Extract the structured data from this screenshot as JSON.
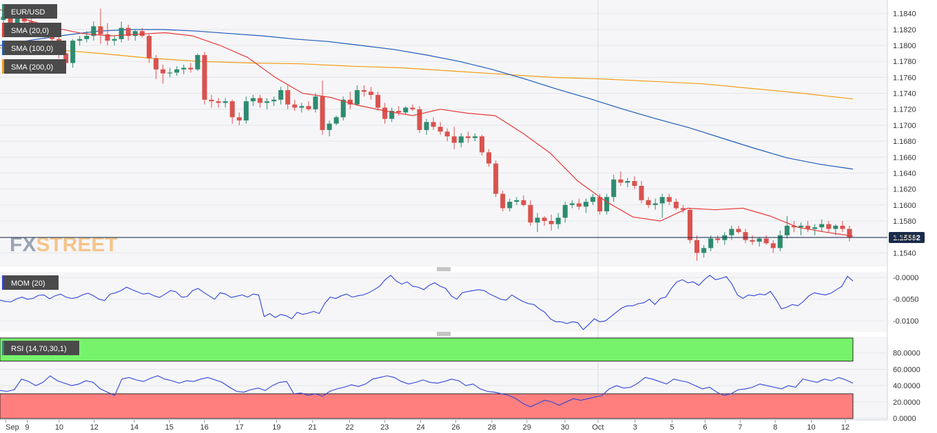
{
  "symbol": "EUR/USD",
  "current_price_label": "1.15592",
  "watermark": {
    "part1": "FX",
    "part2": "STREET"
  },
  "indicators": {
    "sma20": {
      "label": "SMA (20,0)",
      "color": "#e53935"
    },
    "sma100": {
      "label": "SMA (100,0)",
      "color": "#1e5bb8"
    },
    "sma200": {
      "label": "SMA (200,0)",
      "color": "#f39c12"
    },
    "mom": {
      "label": "MOM (20)",
      "color": "#2f43d6"
    },
    "rsi": {
      "label": "RSI (14,70,30,1)",
      "color": "#2f43d6"
    }
  },
  "colors": {
    "up_candle": "#2e8b6f",
    "down_candle": "#d9534f",
    "price_line": "#1a2b4a",
    "rsi_overbought_zone": "#77f36b",
    "rsi_oversold_zone": "#ff7f7f"
  },
  "chart_data": [
    {
      "type": "candlestick",
      "name": "price",
      "y_ticks": [
        "1.1840",
        "1.1820",
        "1.1800",
        "1.1780",
        "1.1760",
        "1.1740",
        "1.1720",
        "1.1700",
        "1.1680",
        "1.1660",
        "1.1640",
        "1.1620",
        "1.1600",
        "1.1580",
        "1.1560",
        "1.1540"
      ],
      "ylim": [
        1.1523,
        1.1857
      ],
      "grid": true,
      "x_labels": [
        "Sep",
        "9",
        "10",
        "12",
        "14",
        "15",
        "16",
        "17",
        "19",
        "21",
        "22",
        "23",
        "24",
        "26",
        "28",
        "29",
        "30",
        "Oct",
        "3",
        "5",
        "6",
        "7",
        "8",
        "10",
        "12"
      ],
      "x_label_positions": [
        0.15,
        2.3,
        5.5,
        9,
        13,
        16.5,
        20,
        23.5,
        27.2,
        30.8,
        34.5,
        38,
        41.6,
        45.1,
        48.7,
        52.2,
        56,
        59.3,
        63,
        66.7,
        70,
        73.5,
        77,
        80.6,
        84
      ],
      "current_price": 1.15592,
      "sma20": [
        1.1845,
        1.1832,
        1.1822,
        1.1815,
        1.1812,
        1.1814,
        1.1816,
        1.1812,
        1.18,
        1.1785,
        1.176,
        1.174,
        1.1735,
        1.1725,
        1.1718,
        1.1712,
        1.172,
        1.1715,
        1.1712,
        1.169,
        1.1665,
        1.163,
        1.1605,
        1.1585,
        1.158,
        1.1596,
        1.1594,
        1.1596,
        1.1586,
        1.1572,
        1.1566,
        1.1561
      ],
      "sma100": [
        1.18,
        1.1807,
        1.1813,
        1.1818,
        1.182,
        1.182,
        1.1818,
        1.1815,
        1.1812,
        1.1808,
        1.1805,
        1.18,
        1.1795,
        1.1788,
        1.178,
        1.177,
        1.1758,
        1.1745,
        1.1733,
        1.172,
        1.1708,
        1.1697,
        1.1684,
        1.1671,
        1.1659,
        1.1651,
        1.1645
      ],
      "sma200": [
        1.1797,
        1.1795,
        1.179,
        1.1784,
        1.178,
        1.1778,
        1.1777,
        1.1774,
        1.1772,
        1.1768,
        1.1764,
        1.176,
        1.1758,
        1.1755,
        1.1752,
        1.1746,
        1.174,
        1.1733
      ],
      "candles": [
        [
          1.1832,
          1.1852,
          1.1826,
          1.1836
        ],
        [
          1.1836,
          1.1842,
          1.182,
          1.1826
        ],
        [
          1.1826,
          1.1846,
          1.1822,
          1.184
        ],
        [
          1.184,
          1.1846,
          1.1824,
          1.183
        ],
        [
          1.183,
          1.1835,
          1.1818,
          1.1822
        ],
        [
          1.1822,
          1.1826,
          1.1812,
          1.1815
        ],
        [
          1.1815,
          1.1818,
          1.1808,
          1.1811
        ],
        [
          1.1811,
          1.1818,
          1.1806,
          1.1808
        ],
        [
          1.1808,
          1.1812,
          1.1784,
          1.179
        ],
        [
          1.179,
          1.1795,
          1.177,
          1.1778
        ],
        [
          1.1778,
          1.1808,
          1.1772,
          1.1806
        ],
        [
          1.1806,
          1.1812,
          1.18,
          1.1808
        ],
        [
          1.1808,
          1.1818,
          1.1804,
          1.1812
        ],
        [
          1.1812,
          1.183,
          1.1806,
          1.1824
        ],
        [
          1.1824,
          1.1846,
          1.1802,
          1.1814
        ],
        [
          1.1814,
          1.1828,
          1.18,
          1.1806
        ],
        [
          1.1806,
          1.1812,
          1.18,
          1.1808
        ],
        [
          1.1808,
          1.183,
          1.1804,
          1.1822
        ],
        [
          1.1822,
          1.1826,
          1.1806,
          1.1812
        ],
        [
          1.1812,
          1.182,
          1.1806,
          1.1818
        ],
        [
          1.1818,
          1.1822,
          1.181,
          1.1812
        ],
        [
          1.1812,
          1.1814,
          1.1778,
          1.1784
        ],
        [
          1.1784,
          1.1788,
          1.1758,
          1.177
        ],
        [
          1.177,
          1.1776,
          1.1752,
          1.1765
        ],
        [
          1.1765,
          1.1772,
          1.176,
          1.1766
        ],
        [
          1.1766,
          1.1774,
          1.1762,
          1.177
        ],
        [
          1.177,
          1.1776,
          1.1764,
          1.1772
        ],
        [
          1.1772,
          1.1778,
          1.1766,
          1.177
        ],
        [
          1.177,
          1.179,
          1.1768,
          1.1788
        ],
        [
          1.1788,
          1.1792,
          1.1726,
          1.1732
        ],
        [
          1.1732,
          1.1738,
          1.1722,
          1.173
        ],
        [
          1.173,
          1.1734,
          1.1722,
          1.1728
        ],
        [
          1.1728,
          1.1734,
          1.1722,
          1.173
        ],
        [
          1.173,
          1.1732,
          1.1702,
          1.171
        ],
        [
          1.171,
          1.1716,
          1.17,
          1.1706
        ],
        [
          1.1706,
          1.1736,
          1.1702,
          1.173
        ],
        [
          1.173,
          1.1738,
          1.1724,
          1.1734
        ],
        [
          1.1734,
          1.1738,
          1.1722,
          1.1728
        ],
        [
          1.1728,
          1.1734,
          1.172,
          1.173
        ],
        [
          1.173,
          1.1736,
          1.1724,
          1.1732
        ],
        [
          1.1732,
          1.1748,
          1.1726,
          1.1744
        ],
        [
          1.1744,
          1.175,
          1.172,
          1.1726
        ],
        [
          1.1726,
          1.1732,
          1.1718,
          1.1722
        ],
        [
          1.1722,
          1.1728,
          1.1716,
          1.1724
        ],
        [
          1.1724,
          1.173,
          1.1718,
          1.172
        ],
        [
          1.172,
          1.174,
          1.1716,
          1.1736
        ],
        [
          1.1736,
          1.1756,
          1.1688,
          1.1694
        ],
        [
          1.1694,
          1.1706,
          1.1686,
          1.1702
        ],
        [
          1.1702,
          1.1712,
          1.17,
          1.171
        ],
        [
          1.171,
          1.1736,
          1.1706,
          1.1732
        ],
        [
          1.1732,
          1.1742,
          1.172,
          1.1726
        ],
        [
          1.1726,
          1.175,
          1.1724,
          1.1744
        ],
        [
          1.1744,
          1.175,
          1.1736,
          1.1742
        ],
        [
          1.1742,
          1.1748,
          1.1732,
          1.1738
        ],
        [
          1.1738,
          1.1742,
          1.1718,
          1.1722
        ],
        [
          1.1722,
          1.1728,
          1.1702,
          1.1708
        ],
        [
          1.1708,
          1.1722,
          1.1704,
          1.1718
        ],
        [
          1.1718,
          1.1724,
          1.1712,
          1.1716
        ],
        [
          1.1716,
          1.1724,
          1.1714,
          1.1722
        ],
        [
          1.1722,
          1.1726,
          1.1718,
          1.172
        ],
        [
          1.172,
          1.1724,
          1.169,
          1.1694
        ],
        [
          1.1694,
          1.1708,
          1.1688,
          1.1704
        ],
        [
          1.1704,
          1.171,
          1.1694,
          1.1698
        ],
        [
          1.1698,
          1.1704,
          1.1688,
          1.1692
        ],
        [
          1.1692,
          1.1696,
          1.168,
          1.1686
        ],
        [
          1.1686,
          1.1698,
          1.167,
          1.1678
        ],
        [
          1.1678,
          1.169,
          1.1672,
          1.1686
        ],
        [
          1.1686,
          1.1692,
          1.1678,
          1.1684
        ],
        [
          1.1684,
          1.169,
          1.168,
          1.1686
        ],
        [
          1.1686,
          1.1688,
          1.1662,
          1.1666
        ],
        [
          1.1666,
          1.167,
          1.1648,
          1.1652
        ],
        [
          1.1652,
          1.1656,
          1.161,
          1.1614
        ],
        [
          1.1614,
          1.1618,
          1.1592,
          1.1596
        ],
        [
          1.1596,
          1.1608,
          1.1592,
          1.1604
        ],
        [
          1.1604,
          1.161,
          1.16,
          1.1606
        ],
        [
          1.1606,
          1.1612,
          1.1598,
          1.16
        ],
        [
          1.16,
          1.1606,
          1.1574,
          1.1578
        ],
        [
          1.1578,
          1.159,
          1.1566,
          1.1584
        ],
        [
          1.1584,
          1.1586,
          1.1574,
          1.158
        ],
        [
          1.158,
          1.1588,
          1.1568,
          1.1576
        ],
        [
          1.1576,
          1.159,
          1.157,
          1.1584
        ],
        [
          1.1584,
          1.1604,
          1.1578,
          1.16
        ],
        [
          1.16,
          1.1606,
          1.1596,
          1.1602
        ],
        [
          1.1602,
          1.1608,
          1.1594,
          1.1598
        ],
        [
          1.1598,
          1.1608,
          1.159,
          1.1604
        ],
        [
          1.1604,
          1.1614,
          1.16,
          1.161
        ],
        [
          1.161,
          1.1614,
          1.1588,
          1.1592
        ],
        [
          1.1592,
          1.1614,
          1.1588,
          1.161
        ],
        [
          1.161,
          1.1638,
          1.1604,
          1.1632
        ],
        [
          1.1632,
          1.1642,
          1.1624,
          1.1628
        ],
        [
          1.1628,
          1.1634,
          1.1622,
          1.163
        ],
        [
          1.163,
          1.1636,
          1.162,
          1.1624
        ],
        [
          1.1624,
          1.163,
          1.1602,
          1.1606
        ],
        [
          1.1606,
          1.161,
          1.1596,
          1.16
        ],
        [
          1.16,
          1.1608,
          1.1594,
          1.1602
        ],
        [
          1.1602,
          1.1614,
          1.1584,
          1.161
        ],
        [
          1.161,
          1.1614,
          1.16,
          1.1604
        ],
        [
          1.1604,
          1.1608,
          1.1594,
          1.1596
        ],
        [
          1.1596,
          1.16,
          1.159,
          1.1594
        ],
        [
          1.1594,
          1.1596,
          1.1552,
          1.1556
        ],
        [
          1.1556,
          1.1562,
          1.153,
          1.154
        ],
        [
          1.154,
          1.155,
          1.1534,
          1.1546
        ],
        [
          1.1546,
          1.1562,
          1.1542,
          1.1558
        ],
        [
          1.1558,
          1.1562,
          1.1552,
          1.1556
        ],
        [
          1.1556,
          1.1566,
          1.155,
          1.1562
        ],
        [
          1.1562,
          1.1574,
          1.1556,
          1.157
        ],
        [
          1.157,
          1.1574,
          1.1564,
          1.1566
        ],
        [
          1.1566,
          1.157,
          1.1552,
          1.1556
        ],
        [
          1.1556,
          1.1562,
          1.155,
          1.1554
        ],
        [
          1.1554,
          1.156,
          1.1548,
          1.1558
        ],
        [
          1.1558,
          1.1562,
          1.155,
          1.1552
        ],
        [
          1.1552,
          1.1556,
          1.154,
          1.1546
        ],
        [
          1.1546,
          1.1568,
          1.1542,
          1.1562
        ],
        [
          1.1562,
          1.1586,
          1.1558,
          1.1574
        ],
        [
          1.1574,
          1.158,
          1.1566,
          1.1572
        ],
        [
          1.1572,
          1.1578,
          1.1562,
          1.1574
        ],
        [
          1.1574,
          1.158,
          1.1566,
          1.157
        ],
        [
          1.157,
          1.1576,
          1.1562,
          1.1572
        ],
        [
          1.1572,
          1.1582,
          1.1566,
          1.1576
        ],
        [
          1.1576,
          1.158,
          1.1566,
          1.157
        ],
        [
          1.157,
          1.1576,
          1.1562,
          1.1574
        ],
        [
          1.1574,
          1.158,
          1.1566,
          1.157
        ],
        [
          1.157,
          1.1574,
          1.1554,
          1.1559
        ]
      ]
    },
    {
      "type": "line",
      "name": "MOM (20)",
      "y_ticks": [
        "-0.0000",
        "-0.0050",
        "-0.0100"
      ],
      "ylim": [
        -0.0125,
        0.0013
      ],
      "values": [
        -0.0052,
        -0.0055,
        -0.0056,
        -0.0049,
        -0.0045,
        -0.005,
        -0.0048,
        -0.0041,
        -0.004,
        -0.0049,
        -0.0042,
        -0.0038,
        -0.0045,
        -0.0048,
        -0.0046,
        -0.004,
        -0.0036,
        -0.0042,
        -0.005,
        -0.0053,
        -0.0038,
        -0.0035,
        -0.003,
        -0.0022,
        -0.0028,
        -0.0033,
        -0.0038,
        -0.0036,
        -0.0042,
        -0.0046,
        -0.0038,
        -0.003,
        -0.0033,
        -0.0045,
        -0.0044,
        -0.003,
        -0.0025,
        -0.0034,
        -0.0042,
        -0.005,
        -0.0035,
        -0.0038,
        -0.0046,
        -0.0043,
        -0.004,
        -0.0045,
        -0.0038,
        -0.004,
        -0.009,
        -0.0083,
        -0.0092,
        -0.0085,
        -0.0088,
        -0.0095,
        -0.008,
        -0.0085,
        -0.0082,
        -0.0078,
        -0.0083,
        -0.006,
        -0.0045,
        -0.0048,
        -0.0042,
        -0.0038,
        -0.0045,
        -0.0042,
        -0.004,
        -0.0035,
        -0.0028,
        -0.002,
        -0.0005,
        0.0005,
        -0.0008,
        -0.0015,
        -0.001,
        -0.002,
        -0.0022,
        -0.0028,
        -0.0018,
        -0.0012,
        -0.002,
        -0.0025,
        -0.0042,
        -0.005,
        -0.0035,
        -0.0032,
        -0.003,
        -0.0028,
        -0.003,
        -0.0038,
        -0.0044,
        -0.005,
        -0.0052,
        -0.004,
        -0.0048,
        -0.0055,
        -0.006,
        -0.0062,
        -0.0072,
        -0.008,
        -0.0095,
        -0.0102,
        -0.0102,
        -0.0106,
        -0.0102,
        -0.0104,
        -0.012,
        -0.0108,
        -0.0095,
        -0.0102,
        -0.01,
        -0.009,
        -0.008,
        -0.007,
        -0.0065,
        -0.0065,
        -0.006,
        -0.0058,
        -0.005,
        -0.0062,
        -0.0048,
        -0.0045,
        -0.0025,
        -0.001,
        -0.0005,
        -0.0012,
        -0.001,
        -0.0018,
        -0.0005,
        0.0005,
        -0.0005,
        -0.0002,
        0.0002,
        -0.0015,
        -0.004,
        -0.0048,
        -0.004,
        -0.0042,
        -0.0038,
        -0.004,
        -0.0032,
        -0.005,
        -0.0072,
        -0.0068,
        -0.0062,
        -0.0065,
        -0.0055,
        -0.0042,
        -0.0035,
        -0.0038,
        -0.004,
        -0.0036,
        -0.0028,
        -0.002,
        0.0003,
        -0.0008
      ]
    },
    {
      "type": "line",
      "name": "RSI (14,70,30,1)",
      "y_ticks": [
        "80.0000",
        "60.0000",
        "40.0000",
        "20.0000",
        "0.0000"
      ],
      "ylim": [
        -2,
        100
      ],
      "overbought": 70,
      "oversold": 30,
      "values": [
        34,
        33,
        35,
        48,
        45,
        40,
        44,
        52,
        46,
        43,
        40,
        42,
        46,
        44,
        36,
        32,
        28,
        48,
        50,
        47,
        45,
        49,
        52,
        48,
        46,
        43,
        46,
        45,
        48,
        50,
        47,
        44,
        38,
        33,
        32,
        35,
        37,
        34,
        40,
        44,
        45,
        30,
        31,
        28,
        30,
        27,
        33,
        36,
        38,
        41,
        39,
        42,
        48,
        50,
        52,
        50,
        45,
        42,
        44,
        47,
        44,
        43,
        45,
        48,
        46,
        40,
        42,
        36,
        33,
        32,
        30,
        28,
        24,
        18,
        14,
        18,
        22,
        20,
        16,
        20,
        24,
        22,
        24,
        26,
        28,
        36,
        40,
        37,
        38,
        43,
        50,
        48,
        45,
        42,
        48,
        46,
        44,
        40,
        36,
        38,
        32,
        28,
        30,
        35,
        36,
        38,
        42,
        40,
        38,
        36,
        40,
        38,
        48,
        46,
        44,
        48,
        46,
        50,
        47,
        43
      ]
    }
  ]
}
